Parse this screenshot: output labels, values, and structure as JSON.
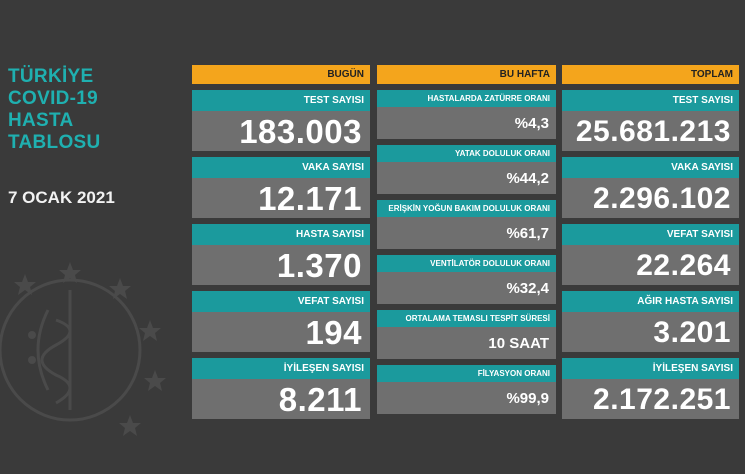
{
  "title_lines": [
    "TÜRKİYE",
    "COVID-19",
    "HASTA",
    "TABLOSU"
  ],
  "date": "7 OCAK 2021",
  "colors": {
    "background": "#3a3a3a",
    "header": "#f4a51c",
    "label": "#1b9a9d",
    "value_bg": "#6f6f6f",
    "title": "#1fb0b0"
  },
  "columns": [
    {
      "header": "BUGÜN",
      "cards": [
        {
          "label": "TEST SAYISI",
          "value": "183.003"
        },
        {
          "label": "VAKA SAYISI",
          "value": "12.171"
        },
        {
          "label": "HASTA SAYISI",
          "value": "1.370"
        },
        {
          "label": "VEFAT SAYISI",
          "value": "194"
        },
        {
          "label": "İYİLEŞEN SAYISI",
          "value": "8.211"
        }
      ]
    },
    {
      "header": "BU HAFTA",
      "cards": [
        {
          "label": "HASTALARDA ZATÜRRE ORANI",
          "value": "%4,3"
        },
        {
          "label": "YATAK DOLULUK ORANI",
          "value": "%44,2"
        },
        {
          "label": "ERİŞKİN YOĞUN BAKIM DOLULUK ORANI",
          "value": "%61,7"
        },
        {
          "label": "VENTİLATÖR DOLULUK ORANI",
          "value": "%32,4"
        },
        {
          "label": "ORTALAMA TEMASLI TESPİT SÜRESİ",
          "value": "10 SAAT"
        },
        {
          "label": "FİLYASYON ORANI",
          "value": "%99,9"
        }
      ]
    },
    {
      "header": "TOPLAM",
      "cards": [
        {
          "label": "TEST SAYISI",
          "value": "25.681.213"
        },
        {
          "label": "VAKA SAYISI",
          "value": "2.296.102"
        },
        {
          "label": "VEFAT SAYISI",
          "value": "22.264"
        },
        {
          "label": "AĞIR HASTA SAYISI",
          "value": "3.201"
        },
        {
          "label": "İYİLEŞEN SAYISI",
          "value": "2.172.251"
        }
      ]
    }
  ]
}
